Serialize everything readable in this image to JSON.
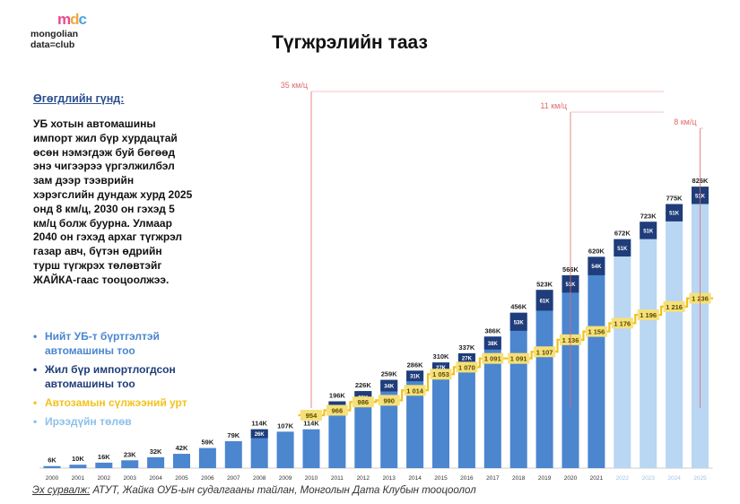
{
  "logo": {
    "mark": [
      "m",
      "d",
      "c"
    ],
    "line1": "mongolian",
    "line2": "data=club"
  },
  "title": "Түгжрэлийн тааз",
  "heading": "Өгөгдлийн гүнд:",
  "body_lines": [
    "УБ хотын автомашины",
    "импорт жил бүр хурдацтай",
    "өсөн нэмэгдэж буй бөгөөд",
    "энэ чигээрээ үргэлжилбэл",
    "зам дээр тээврийн",
    "хэрэгслийн дундаж хурд 2025",
    "онд 8 км/ц, 2030 он гэхэд 5",
    "км/ц болж буурна. Улмаар",
    "2040 он гэхэд архаг түгжрэл",
    "газар авч, бүтэн өдрийн",
    "турш түгжрэх төлөвтэйг",
    "ЖАЙКА-гаас тооцоолжээ."
  ],
  "legend": [
    {
      "label": "Нийт УБ-т бүртгэлтэй автомашины тоо",
      "color": "#4b86cf"
    },
    {
      "label": "Жил бүр импортлогдсон автомашины тоо",
      "color": "#1f3d7a"
    },
    {
      "label": "Автозамын сүлжээний урт",
      "color": "#f2c21b"
    },
    {
      "label": "Ирээдүйн төлөв",
      "color": "#8ec0e8"
    }
  ],
  "source": {
    "label": "Эх сурвалж:",
    "text": " АТУТ, Жайка ОУБ-ын судалгааны тайлан, Монголын Дата Клубын тооцоолол"
  },
  "chart_data": {
    "type": "bar",
    "categories": [
      "2000",
      "2001",
      "2002",
      "2003",
      "2004",
      "2005",
      "2006",
      "2007",
      "2008",
      "2009",
      "2010",
      "2011",
      "2012",
      "2013",
      "2014",
      "2015",
      "2016",
      "2017",
      "2018",
      "2019",
      "2020",
      "2021",
      "2022",
      "2023",
      "2024",
      "2025"
    ],
    "series": [
      {
        "name": "Нийт УБ-т бүртгэлтэй автомашины тоо",
        "values": [
          6,
          10,
          16,
          23,
          32,
          42,
          59,
          79,
          114,
          107,
          114,
          196,
          226,
          259,
          286,
          310,
          337,
          386,
          456,
          523,
          566,
          620,
          672,
          723,
          775,
          826
        ],
        "labels": [
          "6K",
          "10K",
          "16K",
          "23K",
          "32K",
          "42K",
          "59K",
          "79K",
          "114K",
          "107K",
          "114K",
          "196K",
          "226K",
          "259K",
          "286K",
          "310K",
          "337K",
          "386K",
          "456K",
          "523K",
          "566K",
          "620K",
          "672K",
          "723K",
          "775K",
          "826K"
        ]
      },
      {
        "name": "Жил бүр импортлогдсон автомашины тоо",
        "values": [
          null,
          null,
          null,
          null,
          null,
          null,
          null,
          null,
          26,
          null,
          null,
          39,
          35,
          34,
          31,
          27,
          27,
          38,
          53,
          61,
          51,
          54,
          51,
          51,
          51,
          51
        ],
        "labels": [
          "",
          "",
          "",
          "",
          "",
          "",
          "",
          "",
          "26K",
          "",
          "",
          "39K",
          "35K",
          "34K",
          "31K",
          "27K",
          "27K",
          "38K",
          "53K",
          "61K",
          "51K",
          "54K",
          "51K",
          "51K",
          "51K",
          "51K"
        ]
      },
      {
        "name": "Автозамын сүлжээний урт",
        "values": [
          null,
          null,
          null,
          null,
          null,
          null,
          null,
          null,
          null,
          null,
          954,
          966,
          986,
          990,
          1014,
          1053,
          1070,
          1091,
          1091,
          1107,
          1136,
          1156,
          1176,
          1196,
          1216,
          1236
        ],
        "labels": [
          "",
          "",
          "",
          "",
          "",
          "",
          "",
          "",
          "",
          "",
          "954",
          "966",
          "986",
          "990",
          "1 014",
          "1 053",
          "1 070",
          "1 091",
          "1 091",
          "1 107",
          "1 136",
          "1 156",
          "1 176",
          "1 196",
          "1 216",
          "1 236"
        ]
      }
    ],
    "projection_years": [
      "2022",
      "2023",
      "2024",
      "2025"
    ],
    "speed_annotations": [
      {
        "year": "2010",
        "label": "35 км/ц"
      },
      {
        "year": "2020",
        "label": "11 км/ц"
      },
      {
        "year": "2025",
        "label": "8 км/ц"
      }
    ],
    "ylim": [
      0,
      900
    ],
    "road_ylim": [
      900,
      1300
    ],
    "colors": {
      "total": "#4b86cf",
      "import": "#1f3d7a",
      "projection": "#b9d6f2",
      "road": "#f2c21b",
      "road_label_bg": "#f6e07a",
      "annotation": "#e06a6a",
      "axis": "#cccccc"
    }
  }
}
